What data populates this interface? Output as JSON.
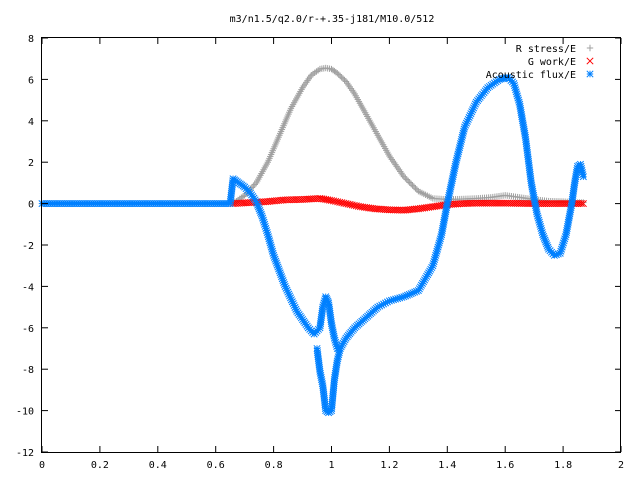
{
  "chart_data": {
    "type": "scatter",
    "title": "m3/n1.5/q2.0/r-+.35-j181/M10.0/512",
    "xlabel": "",
    "ylabel": "",
    "xlim": [
      0,
      2
    ],
    "ylim": [
      -12,
      8
    ],
    "xticks": [
      "0",
      "0.2",
      "0.4",
      "0.6",
      "0.8",
      "1",
      "1.2",
      "1.4",
      "1.6",
      "1.8",
      "2"
    ],
    "yticks": [
      "-12",
      "-10",
      "-8",
      "-6",
      "-4",
      "-2",
      "0",
      "2",
      "4",
      "6",
      "8"
    ],
    "grid": false,
    "legend_position": "top-right",
    "series": [
      {
        "name": "R stress/E",
        "marker": "plus",
        "color": "#a0a0a0",
        "x": [
          0.66,
          0.7,
          0.74,
          0.78,
          0.82,
          0.86,
          0.9,
          0.93,
          0.96,
          0.98,
          1.0,
          1.02,
          1.05,
          1.08,
          1.12,
          1.16,
          1.2,
          1.25,
          1.3,
          1.35,
          1.4,
          1.45,
          1.5,
          1.55,
          1.6,
          1.65,
          1.7,
          1.75,
          1.8,
          1.85,
          1.87
        ],
        "y": [
          0.0,
          0.4,
          1.0,
          2.0,
          3.3,
          4.6,
          5.6,
          6.2,
          6.5,
          6.55,
          6.5,
          6.3,
          5.9,
          5.3,
          4.3,
          3.3,
          2.3,
          1.3,
          0.6,
          0.25,
          0.2,
          0.22,
          0.25,
          0.3,
          0.4,
          0.3,
          0.2,
          0.12,
          0.1,
          0.05,
          0.05
        ]
      },
      {
        "name": "G work/E",
        "marker": "cross",
        "color": "#ff0000",
        "x": [
          0.66,
          0.72,
          0.78,
          0.84,
          0.9,
          0.96,
          1.0,
          1.05,
          1.1,
          1.15,
          1.2,
          1.25,
          1.3,
          1.35,
          1.4,
          1.45,
          1.5,
          1.6,
          1.7,
          1.8,
          1.87
        ],
        "y": [
          0.0,
          0.05,
          0.1,
          0.18,
          0.2,
          0.25,
          0.15,
          0.0,
          -0.15,
          -0.25,
          -0.3,
          -0.32,
          -0.25,
          -0.15,
          -0.05,
          0.0,
          0.02,
          0.02,
          0.0,
          0.0,
          0.0
        ]
      },
      {
        "name": "Acoustic flux/E",
        "marker": "star",
        "color": "#0080ff",
        "x": [
          0.0,
          0.2,
          0.4,
          0.6,
          0.65,
          0.66,
          0.68,
          0.7,
          0.72,
          0.74,
          0.76,
          0.78,
          0.8,
          0.84,
          0.88,
          0.92,
          0.94,
          0.96,
          0.97,
          0.98,
          0.99,
          1.0,
          1.01,
          1.02,
          1.03,
          1.05,
          1.08,
          1.12,
          1.16,
          1.2,
          1.25,
          1.3,
          1.35,
          1.38,
          1.4,
          1.43,
          1.46,
          1.5,
          1.54,
          1.58,
          1.61,
          1.63,
          1.65,
          1.67,
          1.69,
          1.71,
          1.73,
          1.75,
          1.77,
          1.79,
          1.81,
          1.83,
          1.84,
          1.85,
          1.86,
          1.87
        ],
        "y": [
          0.0,
          0.0,
          0.0,
          0.0,
          0.0,
          1.2,
          1.0,
          0.8,
          0.5,
          0.1,
          -0.6,
          -1.5,
          -2.5,
          -4.0,
          -5.2,
          -6.0,
          -6.3,
          -6.0,
          -5.0,
          -4.5,
          -4.8,
          -5.8,
          -6.5,
          -7.0,
          -7.0,
          -6.5,
          -6.0,
          -5.5,
          -5.0,
          -4.7,
          -4.5,
          -4.2,
          -3.0,
          -1.5,
          0.0,
          2.0,
          3.7,
          4.9,
          5.6,
          6.0,
          6.1,
          5.8,
          4.8,
          3.2,
          1.0,
          -0.5,
          -1.5,
          -2.2,
          -2.5,
          -2.4,
          -1.5,
          0.0,
          1.0,
          1.8,
          1.9,
          1.3
        ]
      },
      {
        "name": "",
        "marker": "star",
        "color": "#0080ff",
        "x": [
          0.95,
          0.96,
          0.97,
          0.98,
          0.99,
          1.0,
          1.01,
          1.02,
          1.03
        ],
        "y": [
          -7.0,
          -8.1,
          -8.8,
          -10.0,
          -10.1,
          -10.0,
          -8.5,
          -7.6,
          -7.0
        ]
      }
    ]
  }
}
